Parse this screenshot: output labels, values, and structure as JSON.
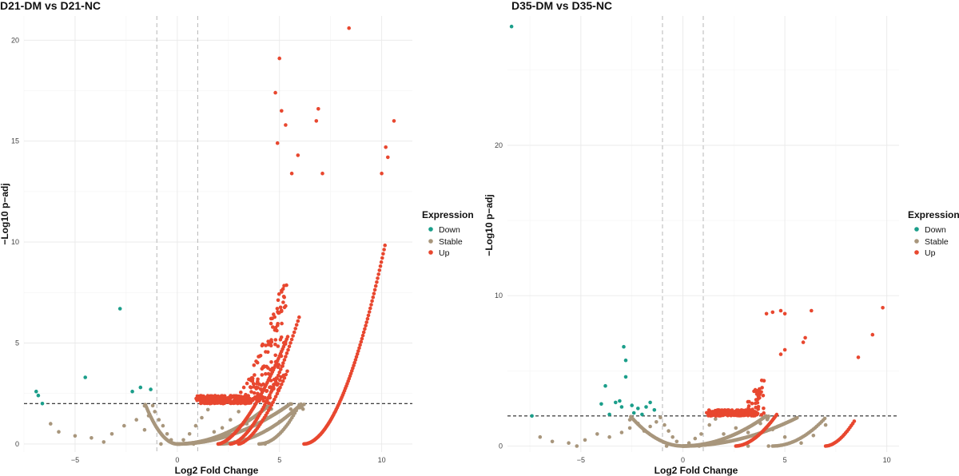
{
  "legend": {
    "title": "Expression",
    "items": [
      {
        "key": "down",
        "label": "Down",
        "color": "#1b9e8a"
      },
      {
        "key": "stable",
        "label": "Stable",
        "color": "#a8967c"
      },
      {
        "key": "up",
        "label": "Up",
        "color": "#e8472f"
      }
    ]
  },
  "chart_data": [
    {
      "type": "scatter",
      "title": "D21-DM vs D21-NC",
      "xlabel": "Log2 Fold Change",
      "ylabel": "−Log10 p−adj",
      "xlim": [
        -7.5,
        11.5
      ],
      "ylim": [
        -0.4,
        21.2
      ],
      "xticks": [
        {
          "v": -5,
          "label": "−5"
        },
        {
          "v": 0,
          "label": "0"
        },
        {
          "v": 5,
          "label": "5"
        },
        {
          "v": 10,
          "label": "10"
        }
      ],
      "yticks": [
        {
          "v": 0,
          "label": "0"
        },
        {
          "v": 5,
          "label": "5"
        },
        {
          "v": 10,
          "label": "10"
        },
        {
          "v": 15,
          "label": "15"
        },
        {
          "v": 20,
          "label": "20"
        }
      ],
      "thresholds": {
        "log2fc": [
          -1,
          1
        ],
        "padj_line": 2
      },
      "series": [
        {
          "name": "Down",
          "points": [
            [
              -6.9,
              2.6
            ],
            [
              -6.8,
              2.4
            ],
            [
              -6.6,
              2.0
            ],
            [
              -4.5,
              3.3
            ],
            [
              -2.8,
              6.7
            ],
            [
              -2.2,
              2.6
            ],
            [
              -1.8,
              2.8
            ],
            [
              -1.3,
              2.7
            ]
          ]
        },
        {
          "name": "Stable",
          "points": [
            [
              -6.2,
              1.0
            ],
            [
              -5.8,
              0.6
            ],
            [
              -5.0,
              0.4
            ],
            [
              -4.2,
              0.3
            ],
            [
              -3.6,
              0.1
            ],
            [
              -3.2,
              0.5
            ],
            [
              -2.6,
              0.9
            ],
            [
              -2.0,
              1.2
            ],
            [
              -1.6,
              0.7
            ],
            [
              -1.4,
              1.4
            ],
            [
              -1.2,
              1.9
            ],
            [
              -1.1,
              1.6
            ],
            [
              -0.9,
              1.2
            ],
            [
              -0.7,
              0.9
            ],
            [
              -0.5,
              0.5
            ],
            [
              -0.3,
              0.2
            ],
            [
              0.0,
              0.0
            ],
            [
              0.3,
              0.2
            ],
            [
              0.6,
              0.5
            ],
            [
              0.9,
              0.9
            ],
            [
              1.2,
              1.3
            ],
            [
              1.5,
              1.7
            ],
            [
              1.8,
              0.6
            ],
            [
              2.2,
              0.8
            ],
            [
              2.6,
              1.2
            ],
            [
              3.0,
              1.6
            ],
            [
              3.4,
              1.0
            ],
            [
              3.9,
              1.4
            ],
            [
              4.4,
              0.7
            ],
            [
              5.0,
              1.1
            ],
            [
              5.6,
              1.5
            ],
            [
              4.3,
              0.0
            ],
            [
              6.0,
              1.8
            ],
            [
              2.8,
              0.1
            ],
            [
              0.8,
              0.0
            ],
            [
              -0.8,
              0.0
            ]
          ],
          "trends": [
            {
              "x0": 0.0,
              "x1": 4.6,
              "k": 0.095,
              "p": 2.0,
              "c": 0.0,
              "step": 0.025
            },
            {
              "x0": 0.0,
              "x1": 5.6,
              "k": 0.065,
              "p": 2.0,
              "c": 0.0,
              "step": 0.03
            },
            {
              "x0": 2.0,
              "x1": 6.2,
              "k": 0.12,
              "p": 2.0,
              "c": 2.0,
              "step": 0.05
            },
            {
              "x0": 4.0,
              "x1": 6.0,
              "k": 0.5,
              "p": 2.0,
              "c": 4.0,
              "step": 0.07
            },
            {
              "x0": -1.6,
              "x1": 0.0,
              "k": 0.8,
              "p": 2.0,
              "c": 0.0,
              "step": 0.04
            }
          ]
        },
        {
          "name": "Up",
          "points": [
            [
              8.4,
              20.6
            ],
            [
              5.0,
              19.1
            ],
            [
              6.9,
              16.6
            ],
            [
              6.8,
              16.0
            ],
            [
              10.6,
              16.0
            ],
            [
              4.8,
              17.4
            ],
            [
              5.1,
              16.5
            ],
            [
              5.3,
              15.8
            ],
            [
              5.9,
              14.3
            ],
            [
              5.6,
              13.4
            ],
            [
              7.1,
              13.4
            ],
            [
              4.9,
              14.9
            ],
            [
              10.2,
              14.7
            ],
            [
              10.3,
              14.2
            ],
            [
              10.0,
              13.4
            ]
          ],
          "trends": [
            {
              "x0": 1.0,
              "x1": 5.3,
              "k": 0.62,
              "p": 1.8,
              "c": 1.0,
              "step": 0.012,
              "band": [
                0.35,
                1.0
              ],
              "jitter": 0.28
            },
            {
              "x0": 2.0,
              "x1": 5.4,
              "k": 0.75,
              "p": 1.6,
              "c": 2.0,
              "step": 0.05
            },
            {
              "x0": 2.6,
              "x1": 6.0,
              "k": 0.8,
              "p": 1.7,
              "c": 2.6,
              "step": 0.06
            },
            {
              "x0": 6.2,
              "x1": 10.2,
              "k": 0.72,
              "p": 1.9,
              "c": 6.2,
              "step": 0.045
            },
            {
              "x0": 3.0,
              "x1": 5.4,
              "k": 0.9,
              "p": 1.6,
              "c": 3.0,
              "step": 0.07
            }
          ]
        }
      ]
    },
    {
      "type": "scatter",
      "title": "D35-DM vs D35-NC",
      "xlabel": "Log2 Fold Change",
      "ylabel": "−Log10 p−adj",
      "xlim": [
        -8.6,
        10.6
      ],
      "ylim": [
        -0.4,
        28.6
      ],
      "xticks": [
        {
          "v": -5,
          "label": "−5"
        },
        {
          "v": 0,
          "label": "0"
        },
        {
          "v": 5,
          "label": "5"
        },
        {
          "v": 10,
          "label": "10"
        }
      ],
      "yticks": [
        {
          "v": 0,
          "label": "0"
        },
        {
          "v": 10,
          "label": "10"
        },
        {
          "v": 20,
          "label": "20"
        }
      ],
      "thresholds": {
        "log2fc": [
          -1,
          1
        ],
        "padj_line": 2
      },
      "series": [
        {
          "name": "Down",
          "points": [
            [
              -8.4,
              27.9
            ],
            [
              -7.4,
              2.0
            ],
            [
              -4.0,
              2.8
            ],
            [
              -3.8,
              4.0
            ],
            [
              -3.6,
              2.1
            ],
            [
              -3.3,
              2.9
            ],
            [
              -3.1,
              3.0
            ],
            [
              -3.0,
              2.6
            ],
            [
              -2.9,
              6.6
            ],
            [
              -2.8,
              5.7
            ],
            [
              -2.8,
              4.6
            ],
            [
              -2.5,
              2.7
            ],
            [
              -2.4,
              2.2
            ],
            [
              -2.2,
              2.5
            ],
            [
              -2.0,
              2.1
            ],
            [
              -1.8,
              2.6
            ],
            [
              -1.6,
              2.9
            ],
            [
              -1.4,
              2.4
            ]
          ]
        },
        {
          "name": "Stable",
          "points": [
            [
              -7.0,
              0.6
            ],
            [
              -6.4,
              0.3
            ],
            [
              -5.6,
              0.2
            ],
            [
              -5.2,
              0.0
            ],
            [
              -4.8,
              0.4
            ],
            [
              -4.2,
              0.8
            ],
            [
              -3.6,
              0.6
            ],
            [
              -3.0,
              0.9
            ],
            [
              -2.6,
              1.2
            ],
            [
              -2.2,
              1.5
            ],
            [
              -1.9,
              1.0
            ],
            [
              -1.6,
              1.3
            ],
            [
              -1.3,
              1.6
            ],
            [
              -1.1,
              1.9
            ],
            [
              -0.9,
              1.4
            ],
            [
              -0.7,
              1.0
            ],
            [
              -0.5,
              0.6
            ],
            [
              -0.3,
              0.3
            ],
            [
              0.0,
              0.0
            ],
            [
              0.3,
              0.2
            ],
            [
              0.6,
              0.5
            ],
            [
              0.9,
              0.8
            ],
            [
              1.3,
              1.4
            ],
            [
              1.6,
              1.8
            ],
            [
              2.0,
              0.8
            ],
            [
              2.6,
              1.2
            ],
            [
              3.2,
              0.9
            ],
            [
              3.8,
              1.5
            ],
            [
              4.4,
              1.1
            ],
            [
              5.0,
              0.6
            ],
            [
              5.8,
              0.2
            ],
            [
              6.4,
              0.7
            ],
            [
              7.0,
              1.4
            ],
            [
              4.2,
              0.0
            ],
            [
              3.2,
              0.0
            ],
            [
              -0.8,
              0.0
            ],
            [
              0.8,
              0.0
            ]
          ],
          "trends": [
            {
              "x0": 0.0,
              "x1": 4.2,
              "k": 0.12,
              "p": 2.0,
              "c": 0.0,
              "step": 0.03
            },
            {
              "x0": 0.0,
              "x1": 5.6,
              "k": 0.06,
              "p": 2.0,
              "c": 0.0,
              "step": 0.04
            },
            {
              "x0": -2.6,
              "x1": 0.0,
              "k": 0.3,
              "p": 2.0,
              "c": 0.0,
              "step": 0.05
            },
            {
              "x0": 4.4,
              "x1": 7.0,
              "k": 0.28,
              "p": 2.0,
              "c": 4.4,
              "step": 0.08
            }
          ]
        },
        {
          "name": "Up",
          "points": [
            [
              9.8,
              9.2
            ],
            [
              9.3,
              7.4
            ],
            [
              8.6,
              5.9
            ],
            [
              6.3,
              9.0
            ],
            [
              6.0,
              7.2
            ],
            [
              5.9,
              6.9
            ],
            [
              5.0,
              8.8
            ],
            [
              4.8,
              9.0
            ],
            [
              4.4,
              8.9
            ],
            [
              4.1,
              8.8
            ],
            [
              4.8,
              6.1
            ],
            [
              5.0,
              6.4
            ]
          ],
          "trends": [
            {
              "x0": 1.3,
              "x1": 3.9,
              "k": 1.0,
              "p": 1.6,
              "c": 1.3,
              "step": 0.012,
              "band": [
                0.35,
                1.0
              ],
              "jitter": 0.32
            },
            {
              "x0": 2.6,
              "x1": 4.6,
              "k": 0.6,
              "p": 1.8,
              "c": 2.6,
              "step": 0.05
            },
            {
              "x0": 7.0,
              "x1": 8.4,
              "k": 0.9,
              "p": 1.8,
              "c": 7.0,
              "step": 0.07
            }
          ]
        }
      ]
    }
  ]
}
